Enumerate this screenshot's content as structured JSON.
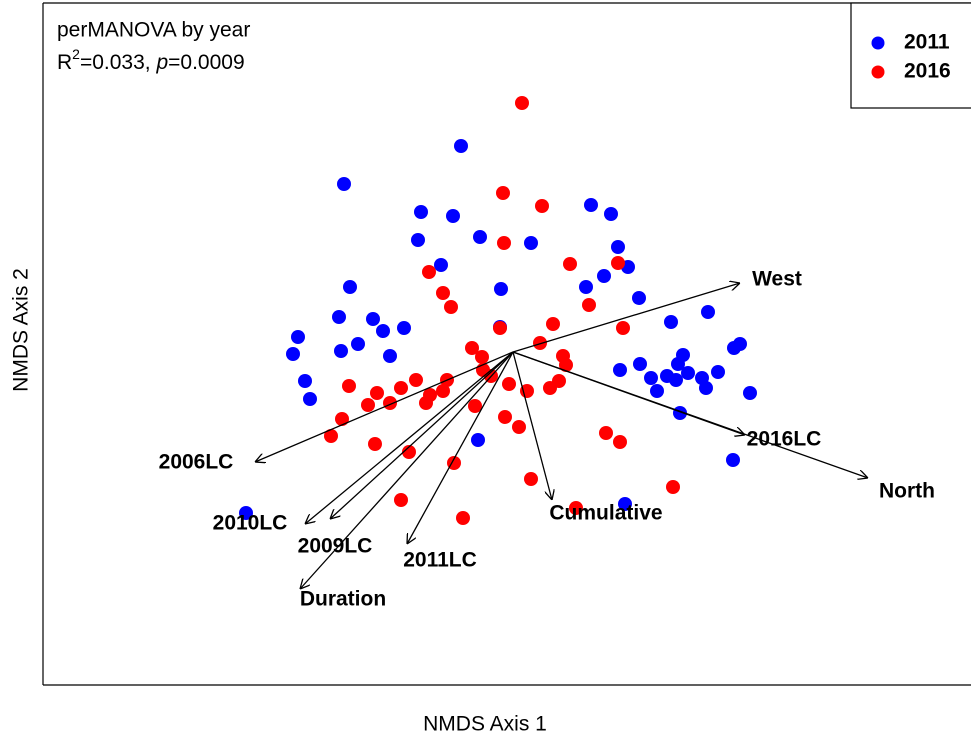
{
  "chart_data": {
    "type": "scatter",
    "annotations": {
      "title": "perMANOVA by year",
      "stat": [
        "R",
        "2",
        "=0.033, ",
        "p",
        "=0.0009"
      ]
    },
    "x_label": "NMDS Axis 1",
    "y_label": "NMDS Axis 2",
    "xlim": [
      -470,
      457
    ],
    "ylim": [
      -333,
      349
    ],
    "legend": "top-right",
    "series": [
      {
        "name": "2011",
        "color": "#0000ff",
        "x": [
          -52,
          -169,
          -92,
          -60,
          78,
          98,
          -95,
          -33,
          18,
          -72,
          105,
          91,
          115,
          73,
          -163,
          -12,
          126,
          -174,
          -140,
          195,
          -130,
          -109,
          158,
          -215,
          -155,
          -172,
          -123,
          -13,
          -220,
          227,
          221,
          170,
          127,
          107,
          165,
          138,
          154,
          175,
          189,
          205,
          -208,
          163,
          193,
          144,
          237,
          -203,
          167,
          -35,
          220,
          -267,
          112
        ],
        "values": [
          206,
          168,
          140,
          136,
          147,
          138,
          112,
          115,
          109,
          87,
          105,
          76,
          85,
          65,
          65,
          63,
          54,
          35,
          33,
          40,
          21,
          24,
          30,
          15,
          8,
          1,
          -4,
          25,
          -2,
          8,
          4,
          -3,
          -12,
          -18,
          -12,
          -26,
          -24,
          -21,
          -26,
          -20,
          -29,
          -28,
          -36,
          -39,
          -41,
          -47,
          -61,
          -88,
          -108,
          -161,
          -152
        ]
      },
      {
        "name": "2016",
        "color": "#ff0000",
        "x": [
          9,
          -10,
          29,
          -9,
          57,
          105,
          -84,
          -70,
          76,
          -62,
          40,
          110,
          -13,
          27,
          -41,
          -31,
          50,
          53,
          -30,
          -66,
          -97,
          -136,
          -164,
          -112,
          -22,
          -4,
          14,
          37,
          46,
          -70,
          -83,
          -145,
          -123,
          -87,
          -171,
          -38,
          -8,
          6,
          -182,
          93,
          107,
          -138,
          -104,
          -59,
          18,
          160,
          -112,
          -50,
          63
        ],
        "values": [
          249,
          159,
          146,
          109,
          88,
          89,
          80,
          59,
          47,
          45,
          28,
          24,
          24,
          9,
          4,
          -5,
          -4,
          -13,
          -18,
          -28,
          -28,
          -41,
          -34,
          -36,
          -24,
          -32,
          -39,
          -36,
          -29,
          -39,
          -43,
          -53,
          -51,
          -51,
          -67,
          -54,
          -65,
          -75,
          -84,
          -81,
          -90,
          -92,
          -100,
          -111,
          -127,
          -135,
          -148,
          -166,
          -156
        ]
      }
    ],
    "vectors": [
      {
        "name": "West",
        "x": 227,
        "y": 69
      },
      {
        "name": "North",
        "x": 355,
        "y": -126
      },
      {
        "name": "2016LC",
        "x": 232,
        "y": -83
      },
      {
        "name": "2006LC",
        "x": -258,
        "y": -110
      },
      {
        "name": "2010LC",
        "x": -208,
        "y": -172
      },
      {
        "name": "2009LC",
        "x": -183,
        "y": -167
      },
      {
        "name": "2011LC",
        "x": -106,
        "y": -192
      },
      {
        "name": "Duration",
        "x": -213,
        "y": -237
      },
      {
        "name": "Cumulative",
        "x": 39,
        "y": -148
      }
    ]
  }
}
